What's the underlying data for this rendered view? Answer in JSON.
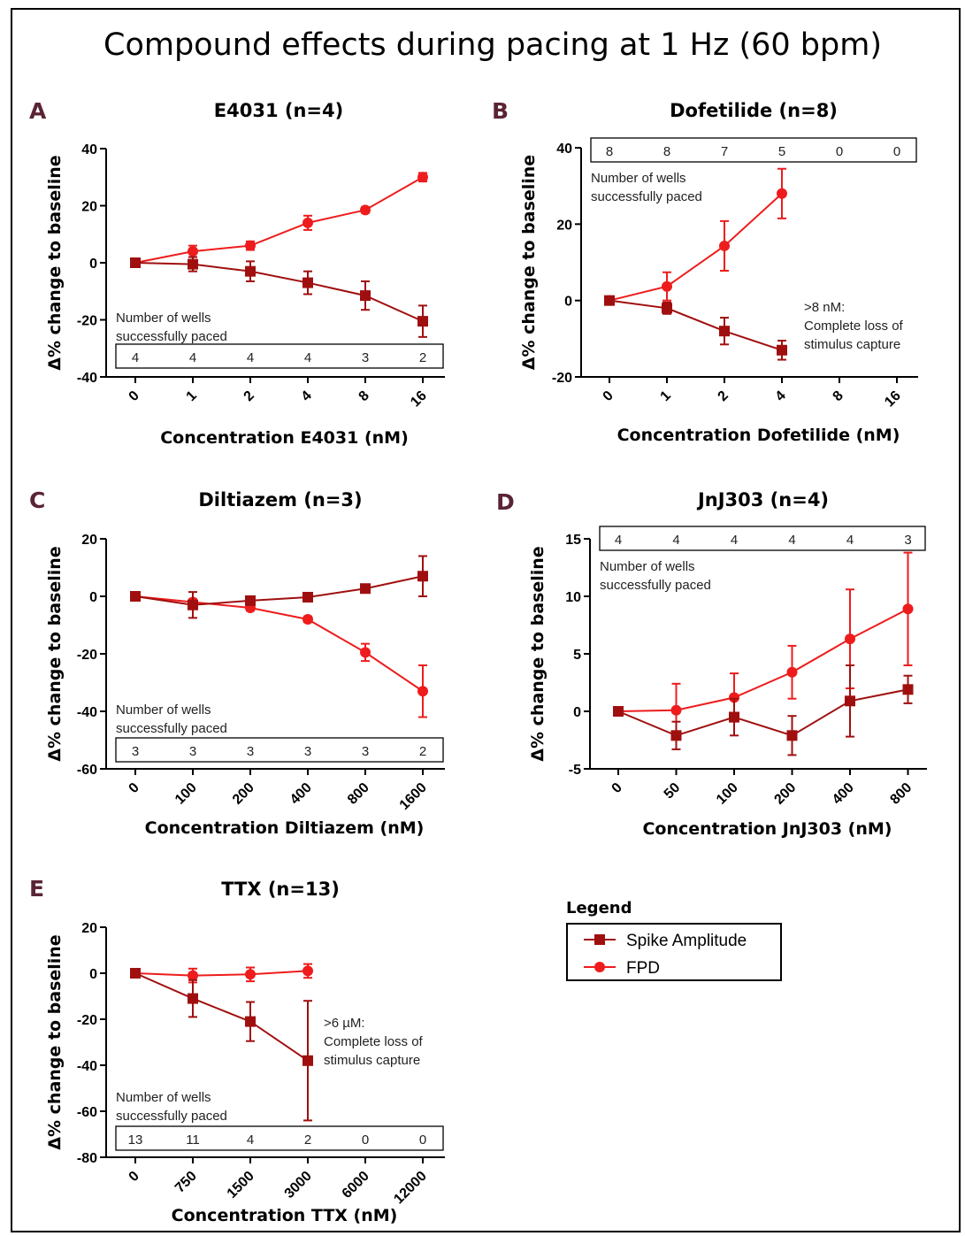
{
  "figure": {
    "title": "Compound effects during pacing at 1 Hz (60 bpm)",
    "legend": {
      "title": "Legend",
      "entries": [
        {
          "name": "Spike Amplitude",
          "marker": "square",
          "color": "#a00f0f"
        },
        {
          "name": "FPD",
          "marker": "circle",
          "color": "#ee1c1c"
        }
      ]
    },
    "colors": {
      "spike": "#a00f0f",
      "fpd": "#ee1c1c",
      "panel_label": "#5a2434"
    }
  },
  "chart_data": [
    {
      "type": "line",
      "panel": "A",
      "title": "E4031 (n=4)",
      "xlabel": "Concentration E4031 (nM)",
      "ylabel": "Δ% change to baseline",
      "categories": [
        "0",
        "1",
        "2",
        "4",
        "8",
        "16"
      ],
      "ylim": [
        -40,
        40
      ],
      "yticks": [
        -40,
        -20,
        0,
        20,
        40
      ],
      "series": [
        {
          "name": "Spike Amplitude",
          "values": [
            0,
            -0.5,
            -3,
            -7,
            -11.5,
            -20.5
          ],
          "errors": [
            0,
            2.5,
            3.5,
            4,
            5,
            5.5
          ]
        },
        {
          "name": "FPD",
          "values": [
            0,
            4,
            6,
            14,
            18.5,
            30
          ],
          "errors": [
            0,
            2,
            1.5,
            2.5,
            1,
            1.5
          ]
        }
      ],
      "wells_label": "Number of wells successfully paced",
      "wells": [
        "4",
        "4",
        "4",
        "4",
        "3",
        "2"
      ],
      "wells_position": "bottom"
    },
    {
      "type": "line",
      "panel": "B",
      "title": "Dofetilide (n=8)",
      "xlabel": "Concentration Dofetilide (nM)",
      "ylabel": "Δ% change to baseline",
      "categories": [
        "0",
        "1",
        "2",
        "4",
        "8",
        "16"
      ],
      "ylim": [
        -20,
        40
      ],
      "yticks": [
        -20,
        0,
        20,
        40
      ],
      "series": [
        {
          "name": "Spike Amplitude",
          "values": [
            0,
            -2,
            -8,
            -13,
            null,
            null
          ],
          "errors": [
            0,
            1.5,
            3.5,
            2.5,
            null,
            null
          ]
        },
        {
          "name": "FPD",
          "values": [
            0,
            3.7,
            14.3,
            28,
            null,
            null
          ],
          "errors": [
            0,
            3.7,
            6.5,
            6.5,
            null,
            null
          ]
        }
      ],
      "wells_label": "Number of wells successfully paced",
      "wells": [
        "8",
        "8",
        "7",
        "5",
        "0",
        "0"
      ],
      "wells_position": "top",
      "annotation": [
        ">8 nM:",
        "Complete loss of",
        "stimulus capture"
      ]
    },
    {
      "type": "line",
      "panel": "C",
      "title": "Diltiazem (n=3)",
      "xlabel": "Concentration Diltiazem (nM)",
      "ylabel": "Δ% change to baseline",
      "categories": [
        "0",
        "100",
        "200",
        "400",
        "800",
        "1600"
      ],
      "ylim": [
        -60,
        20
      ],
      "yticks": [
        -60,
        -40,
        -20,
        0,
        20
      ],
      "series": [
        {
          "name": "Spike Amplitude",
          "values": [
            0,
            -3,
            -1.5,
            -0.3,
            2.7,
            7
          ],
          "errors": [
            0,
            4.5,
            1.5,
            0.8,
            1,
            7
          ]
        },
        {
          "name": "FPD",
          "values": [
            0,
            -2,
            -4,
            -8,
            -19.5,
            -33
          ],
          "errors": [
            0,
            1,
            1,
            1,
            3,
            9
          ]
        }
      ],
      "wells_label": "Number of wells successfully paced",
      "wells": [
        "3",
        "3",
        "3",
        "3",
        "3",
        "2"
      ],
      "wells_position": "bottom"
    },
    {
      "type": "line",
      "panel": "D",
      "title": "JnJ303 (n=4)",
      "xlabel": "Concentration JnJ303 (nM)",
      "ylabel": "Δ% change to baseline",
      "categories": [
        "0",
        "50",
        "100",
        "200",
        "400",
        "800"
      ],
      "ylim": [
        -5,
        15
      ],
      "yticks": [
        -5,
        0,
        5,
        10,
        15
      ],
      "series": [
        {
          "name": "Spike Amplitude",
          "values": [
            0,
            -2.1,
            -0.5,
            -2.1,
            0.9,
            1.9
          ],
          "errors": [
            0,
            1.2,
            1.6,
            1.7,
            3.1,
            1.2
          ]
        },
        {
          "name": "FPD",
          "values": [
            0,
            0.1,
            1.2,
            3.4,
            6.3,
            8.9
          ],
          "errors": [
            0,
            2.3,
            2.1,
            2.3,
            4.3,
            4.9
          ]
        }
      ],
      "wells_label": "Number of wells successfully paced",
      "wells": [
        "4",
        "4",
        "4",
        "4",
        "4",
        "3"
      ],
      "wells_position": "top"
    },
    {
      "type": "line",
      "panel": "E",
      "title": "TTX (n=13)",
      "xlabel": "Concentration TTX (nM)",
      "ylabel": "Δ% change to baseline",
      "categories": [
        "0",
        "750",
        "1500",
        "3000",
        "6000",
        "12000"
      ],
      "ylim": [
        -80,
        20
      ],
      "yticks": [
        -80,
        -60,
        -40,
        -20,
        0,
        20
      ],
      "series": [
        {
          "name": "Spike Amplitude",
          "values": [
            0,
            -11,
            -21,
            -38,
            null,
            null
          ],
          "errors": [
            0,
            8,
            8.5,
            26,
            null,
            null
          ]
        },
        {
          "name": "FPD",
          "values": [
            0,
            -1,
            -0.5,
            1,
            null,
            null
          ],
          "errors": [
            0,
            3,
            3,
            3,
            null,
            null
          ]
        }
      ],
      "wells_label": "Number of wells successfully paced",
      "wells": [
        "13",
        "11",
        "4",
        "2",
        "0",
        "0"
      ],
      "wells_position": "bottom",
      "annotation": [
        ">6 µM:",
        "Complete loss of",
        "stimulus capture"
      ]
    }
  ]
}
